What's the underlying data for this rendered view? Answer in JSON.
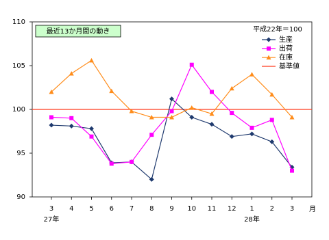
{
  "chart_data": {
    "type": "line",
    "title": "最近13か月間の動き",
    "legend_title": "平成22年＝100",
    "legend_position": "upper right",
    "x_unit": "月",
    "categories": [
      "3",
      "4",
      "5",
      "6",
      "7",
      "8",
      "9",
      "10",
      "11",
      "12",
      "1",
      "2",
      "3"
    ],
    "year_labels": [
      "27年",
      null,
      null,
      null,
      null,
      null,
      null,
      null,
      null,
      null,
      "28年",
      null,
      null
    ],
    "ylim": [
      90,
      110
    ],
    "yticks": [
      90,
      95,
      100,
      105,
      110
    ],
    "grid": false,
    "series": [
      {
        "name": "生産",
        "color": "#1f3a6e",
        "marker": "diamond",
        "values": [
          98.2,
          98.1,
          97.8,
          93.9,
          94.0,
          92.0,
          101.2,
          99.1,
          98.3,
          96.9,
          97.2,
          96.3,
          93.4
        ]
      },
      {
        "name": "出荷",
        "color": "#ff00ff",
        "marker": "square",
        "values": [
          99.1,
          99.0,
          96.9,
          93.8,
          94.0,
          97.1,
          99.8,
          105.1,
          102.0,
          99.6,
          97.9,
          98.8,
          93.0
        ]
      },
      {
        "name": "在庫",
        "color": "#ff8c1a",
        "marker": "triangle",
        "values": [
          102.0,
          104.1,
          105.6,
          102.1,
          99.8,
          99.1,
          99.1,
          100.2,
          99.5,
          102.4,
          104.0,
          101.7,
          99.1
        ]
      }
    ],
    "reference": {
      "name": "基準値",
      "value": 100,
      "color": "#ff3b1f"
    }
  }
}
